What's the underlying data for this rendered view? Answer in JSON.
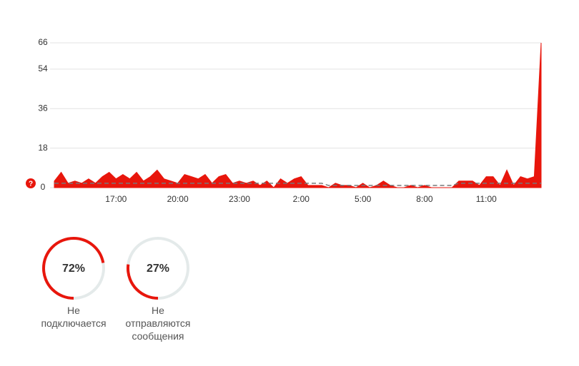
{
  "chart_data": [
    {
      "type": "area",
      "categories": [
        null,
        null,
        null,
        null,
        null,
        null,
        null,
        null,
        null,
        "17:00",
        null,
        null,
        null,
        null,
        null,
        null,
        null,
        null,
        "20:00",
        null,
        null,
        null,
        null,
        null,
        null,
        null,
        null,
        "23:00",
        null,
        null,
        null,
        null,
        null,
        null,
        null,
        null,
        "2:00",
        null,
        null,
        null,
        null,
        null,
        null,
        null,
        null,
        "5:00",
        null,
        null,
        null,
        null,
        null,
        null,
        null,
        null,
        "8:00",
        null,
        null,
        null,
        null,
        null,
        null,
        null,
        null,
        "11:00",
        null,
        null,
        null,
        null,
        null,
        null,
        null,
        null
      ],
      "series": [
        {
          "color": "#e8160c",
          "values": [
            3,
            7,
            2,
            3,
            2,
            4,
            2,
            5,
            7,
            4,
            6,
            4,
            7,
            3,
            5,
            8,
            4,
            3,
            2,
            6,
            5,
            4,
            6,
            2,
            5,
            6,
            2,
            3,
            2,
            3,
            1,
            3,
            0,
            4,
            2,
            4,
            5,
            1,
            1,
            1,
            0,
            2,
            1,
            1,
            0,
            2,
            0,
            1,
            3,
            1,
            0,
            0,
            1,
            0,
            1,
            0,
            0,
            0,
            0,
            3,
            3,
            3,
            1,
            5,
            5,
            1,
            8,
            1,
            5,
            4,
            5,
            66
          ]
        },
        {
          "color": "#777777",
          "dashed": true,
          "values": [
            2,
            2,
            2,
            2,
            2,
            2,
            2,
            2,
            2,
            2,
            2,
            2,
            2,
            2,
            2,
            2,
            2,
            2,
            2,
            2,
            2,
            2,
            2,
            2,
            2,
            2,
            2,
            2,
            2,
            2,
            2,
            2,
            2,
            2,
            2,
            2,
            2,
            2,
            2,
            2,
            1,
            1,
            1,
            1,
            1,
            1,
            1,
            1,
            1,
            1,
            1,
            1,
            1,
            1,
            1,
            1,
            1,
            1,
            1,
            2,
            2,
            2,
            2,
            2,
            2,
            2,
            2,
            2,
            2,
            2,
            2,
            2
          ]
        }
      ],
      "ylim": [
        0,
        66
      ],
      "yticks": [
        0,
        18,
        36,
        54,
        66
      ],
      "grid": true
    },
    {
      "type": "gauge",
      "color": "#e8160c",
      "categories": [
        "Не подключается",
        "Не отправляются сообщения"
      ],
      "values": [
        72,
        27
      ],
      "value_labels": [
        "72%",
        "27%"
      ]
    }
  ]
}
